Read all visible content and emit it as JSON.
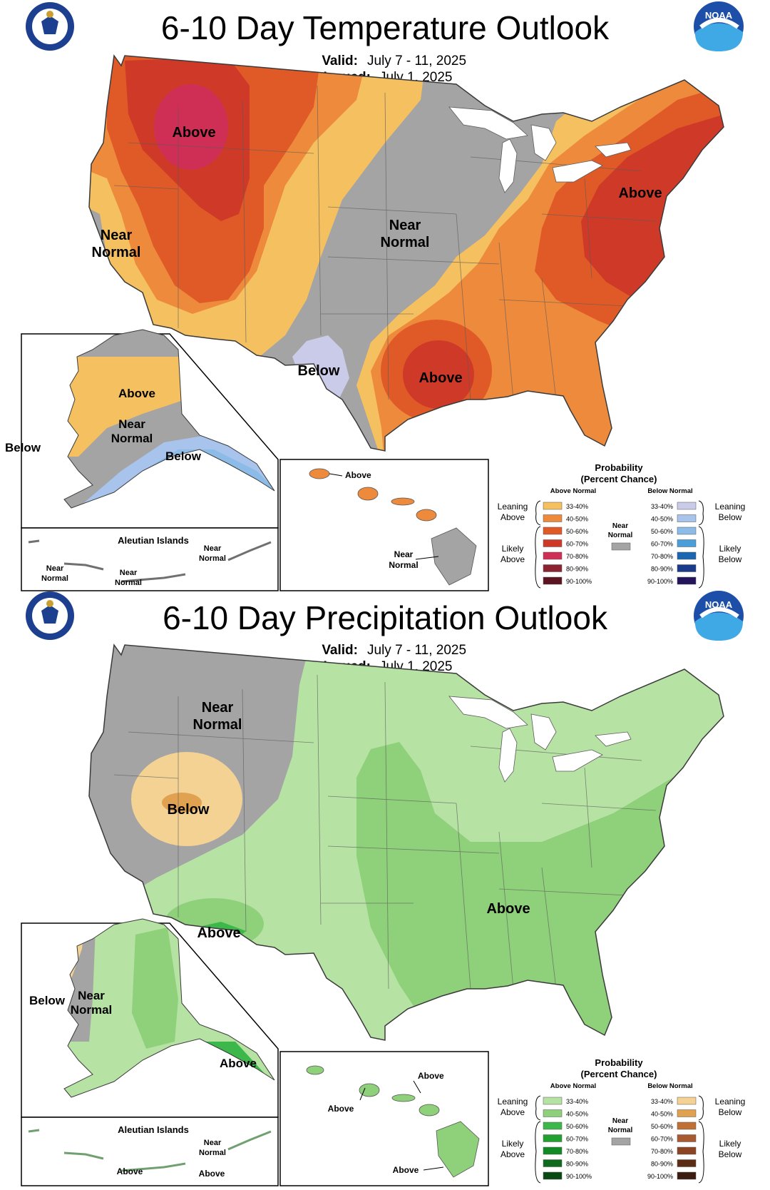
{
  "temperature": {
    "title": "6-10 Day Temperature Outlook",
    "valid_label": "Valid:",
    "valid_value": "July 7 - 11, 2025",
    "issued_label": "Issued:",
    "issued_value": "July 1, 2025",
    "conus_labels": {
      "above_nw": "Above",
      "near_w1": "Near",
      "near_w2": "Normal",
      "near_c1": "Near",
      "near_c2": "Normal",
      "above_ne": "Above",
      "below_tx": "Below",
      "above_gulf": "Above"
    },
    "alaska_labels": {
      "above": "Above",
      "near1": "Near",
      "near2": "Normal",
      "below_w": "Below",
      "below_s": "Below"
    },
    "aleutian": {
      "title": "Aleutian Islands",
      "left1": "Near",
      "left2": "Normal",
      "mid1": "Near",
      "mid2": "Normal",
      "right1": "Near",
      "right2": "Normal"
    },
    "hawaii_labels": {
      "top": "Above",
      "bottom1": "Near",
      "bottom2": "Normal"
    },
    "legend": {
      "title1": "Probability",
      "title2": "(Percent Chance)",
      "above_header": "Above Normal",
      "below_header": "Below Normal",
      "leaning_above1": "Leaning",
      "leaning_above2": "Above",
      "likely_above1": "Likely",
      "likely_above2": "Above",
      "near1": "Near",
      "near2": "Normal",
      "leaning_below1": "Leaning",
      "leaning_below2": "Below",
      "likely_below1": "Likely",
      "likely_below2": "Below",
      "above_bins": [
        "33-40%",
        "40-50%",
        "50-60%",
        "60-70%",
        "70-80%",
        "80-90%",
        "90-100%"
      ],
      "below_bins": [
        "33-40%",
        "40-50%",
        "50-60%",
        "60-70%",
        "70-80%",
        "80-90%",
        "90-100%"
      ]
    }
  },
  "precipitation": {
    "title": "6-10 Day Precipitation Outlook",
    "valid_label": "Valid:",
    "valid_value": "July 7 - 11, 2025",
    "issued_label": "Issued:",
    "issued_value": "July 1, 2025",
    "conus_labels": {
      "near1": "Near",
      "near2": "Normal",
      "below": "Below",
      "above_sw": "Above",
      "above_e": "Above"
    },
    "alaska_labels": {
      "below": "Below",
      "near1": "Near",
      "near2": "Normal",
      "above": "Above"
    },
    "aleutian": {
      "title": "Aleutian Islands",
      "right1": "Near",
      "right2": "Normal",
      "left": "Above",
      "mid": "Above"
    },
    "hawaii_labels": {
      "top": "Above",
      "left": "Above",
      "bottom": "Above"
    },
    "legend": {
      "title1": "Probability",
      "title2": "(Percent Chance)",
      "above_header": "Above Normal",
      "below_header": "Below Normal",
      "leaning_above1": "Leaning",
      "leaning_above2": "Above",
      "likely_above1": "Likely",
      "likely_above2": "Above",
      "near1": "Near",
      "near2": "Normal",
      "leaning_below1": "Leaning",
      "leaning_below2": "Below",
      "likely_below1": "Likely",
      "likely_below2": "Below",
      "above_bins": [
        "33-40%",
        "40-50%",
        "50-60%",
        "60-70%",
        "70-80%",
        "80-90%",
        "90-100%"
      ],
      "below_bins": [
        "33-40%",
        "40-50%",
        "50-60%",
        "60-70%",
        "70-80%",
        "80-90%",
        "90-100%"
      ]
    }
  },
  "colors": {
    "temp_above": [
      "#f5c060",
      "#ee8a3c",
      "#e05a28",
      "#cf3a28",
      "#cf2f55",
      "#8c2330",
      "#5c1420"
    ],
    "temp_below": [
      "#c9cbe8",
      "#a9c4ec",
      "#8cbbe8",
      "#4a9fda",
      "#1a66b0",
      "#1a3a8c",
      "#24145c"
    ],
    "precip_above": [
      "#b6e2a4",
      "#8fd07a",
      "#3cb84a",
      "#22a030",
      "#128a26",
      "#0e6a1c",
      "#0a4a12"
    ],
    "precip_below": [
      "#f3d294",
      "#e0a250",
      "#c07034",
      "#a85a30",
      "#8c4424",
      "#5c2c14",
      "#3c1c10"
    ],
    "near_normal": "#a4a4a4"
  }
}
